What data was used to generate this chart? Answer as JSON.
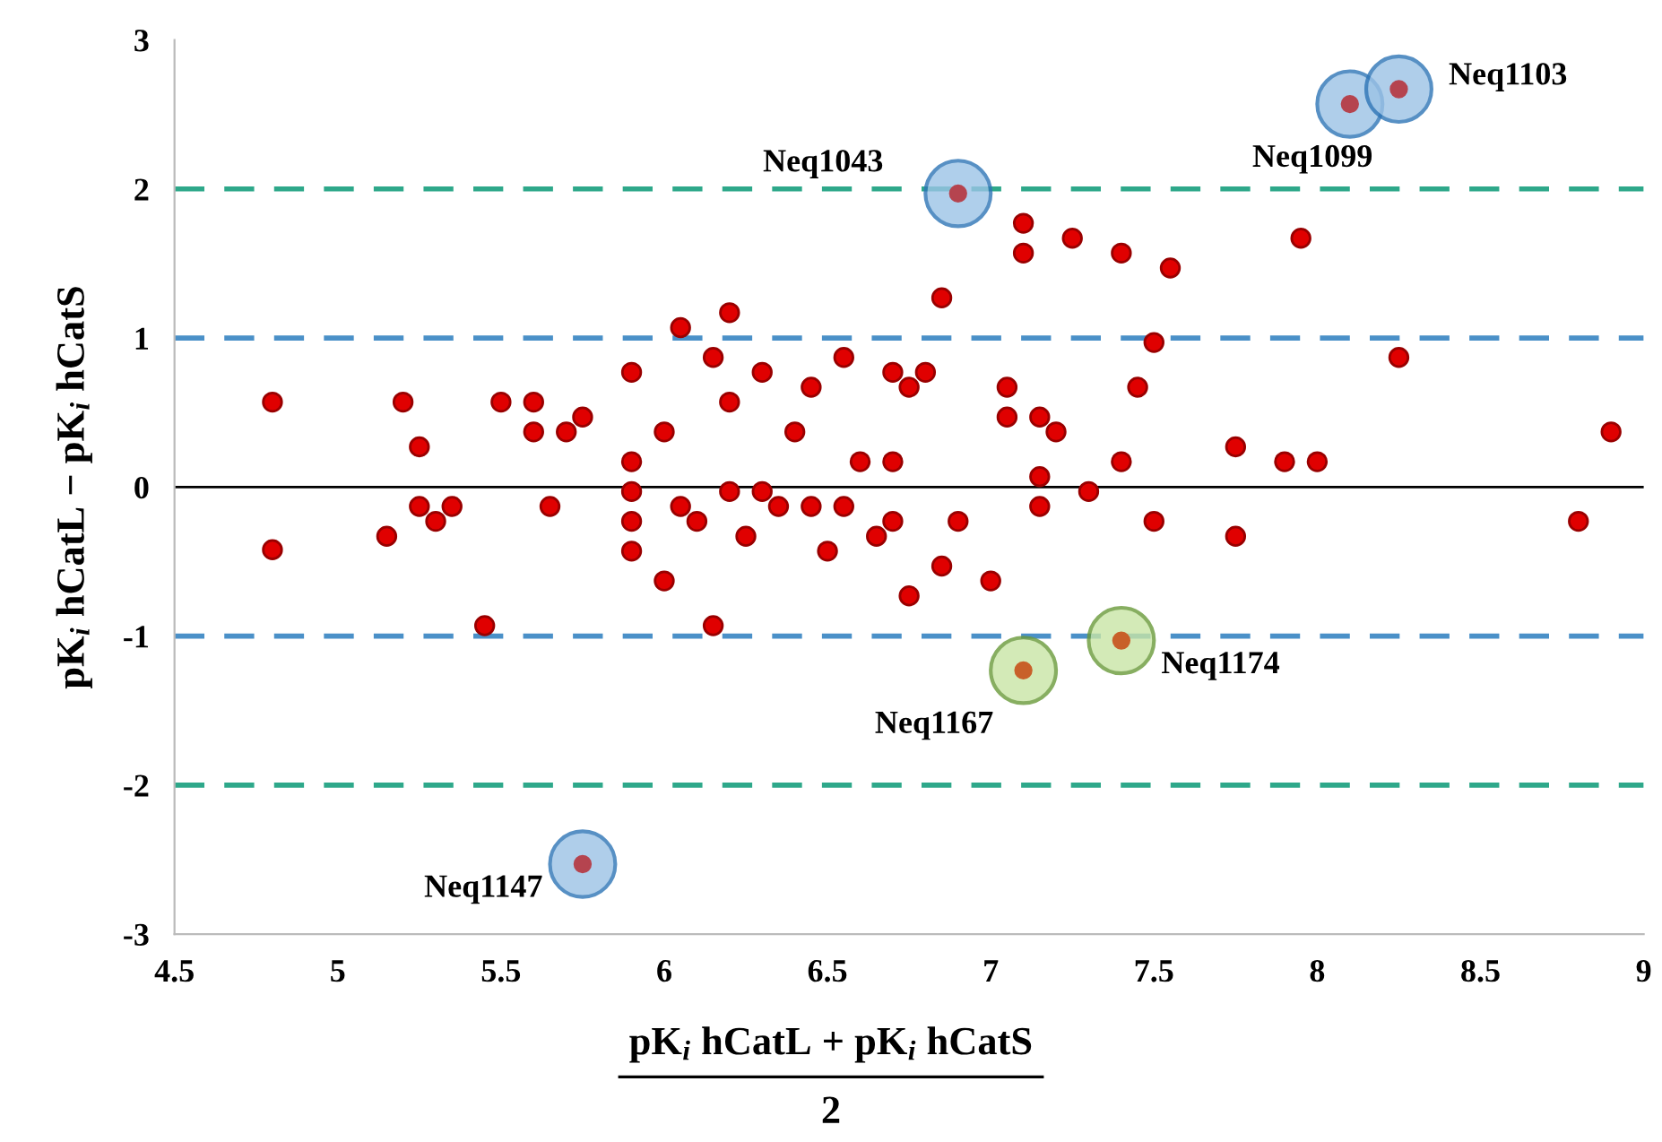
{
  "chart_data": {
    "type": "scatter",
    "xlabel": "pK$_{i}$ hCatL + pK$_{i}$ hCatS\n2",
    "ylabel": "pK$_{i}$ hCatL − pK$_{i}$ hCatS",
    "xlim": [
      4.5,
      9
    ],
    "xticks": [
      4.5,
      5,
      5.5,
      6,
      6.5,
      7,
      7.5,
      8,
      8.5,
      9
    ],
    "ylim": [
      -3,
      3
    ],
    "yticks": [
      -3,
      -2,
      -1,
      0,
      1,
      2,
      3
    ],
    "grid": false,
    "marker": "circle",
    "series": [
      {
        "color": "#e00000",
        "x": [
          4.8,
          4.8,
          5.15,
          5.2,
          5.25,
          5.25,
          5.3,
          5.35,
          5.45,
          5.5,
          5.6,
          5.6,
          5.65,
          5.7,
          5.75,
          5.9,
          5.9,
          5.9,
          5.9,
          5.9,
          6.0,
          6.0,
          6.05,
          6.05,
          6.1,
          6.15,
          6.15,
          6.2,
          6.2,
          6.2,
          6.25,
          6.3,
          6.3,
          6.35,
          6.4,
          6.45,
          6.45,
          6.5,
          6.55,
          6.55,
          6.6,
          6.65,
          6.7,
          6.7,
          6.7,
          6.75,
          6.75,
          6.8,
          6.85,
          6.85,
          6.9,
          7.0,
          7.05,
          7.05,
          7.1,
          7.1,
          7.15,
          7.15,
          7.15,
          7.2,
          7.25,
          7.3,
          7.4,
          7.4,
          7.45,
          7.5,
          7.5,
          7.55,
          7.75,
          7.75,
          7.9,
          7.95,
          8.0,
          8.25,
          8.8,
          8.9
        ],
        "values": [
          0.57,
          -0.42,
          -0.33,
          0.57,
          0.27,
          -0.13,
          -0.23,
          -0.13,
          -0.93,
          0.57,
          0.57,
          0.37,
          -0.13,
          0.37,
          0.47,
          0.77,
          0.17,
          -0.03,
          -0.23,
          -0.43,
          0.37,
          -0.63,
          1.07,
          -0.13,
          -0.23,
          0.87,
          -0.93,
          1.17,
          0.57,
          -0.03,
          -0.33,
          0.77,
          -0.03,
          -0.13,
          0.37,
          0.67,
          -0.13,
          -0.43,
          0.87,
          -0.13,
          0.17,
          -0.33,
          0.77,
          0.17,
          -0.23,
          0.67,
          -0.73,
          0.77,
          1.27,
          -0.53,
          -0.23,
          -0.63,
          0.67,
          0.47,
          1.77,
          1.57,
          0.47,
          0.07,
          -0.13,
          0.37,
          1.67,
          -0.03,
          1.57,
          0.17,
          0.67,
          0.97,
          -0.23,
          1.47,
          0.27,
          -0.33,
          0.17,
          1.67,
          0.17,
          0.87,
          -0.23,
          0.37
        ]
      },
      {
        "color": "#b5444f",
        "x": [
          6.9,
          8.1,
          8.25,
          5.75
        ],
        "values": [
          1.97,
          2.57,
          2.67,
          -2.53
        ]
      },
      {
        "color": "#c8602a",
        "x": [
          7.1,
          7.4
        ],
        "values": [
          -1.23,
          -1.03
        ]
      }
    ],
    "ref_lines": [
      {
        "axis": "y",
        "value": 2,
        "color": "#2ea88a",
        "line_style": "dashed"
      },
      {
        "axis": "y",
        "value": 1,
        "color": "#4a90c8",
        "line_style": "dashed"
      },
      {
        "axis": "y",
        "value": 0,
        "color": "#000000",
        "line_style": "solid"
      },
      {
        "axis": "y",
        "value": -1,
        "color": "#4a90c8",
        "line_style": "dashed"
      },
      {
        "axis": "y",
        "value": -2,
        "color": "#2ea88a",
        "line_style": "dashed"
      }
    ],
    "annotations": [
      {
        "text": "Neq1043",
        "x": 6.9,
        "y": 1.97
      },
      {
        "text": "Neq1099",
        "x": 8.1,
        "y": 2.57
      },
      {
        "text": "Neq1103",
        "x": 8.25,
        "y": 2.67
      },
      {
        "text": "Neq1147",
        "x": 5.75,
        "y": -2.53
      },
      {
        "text": "Neq1167",
        "x": 7.1,
        "y": -1.23
      },
      {
        "text": "Neq1174",
        "x": 7.4,
        "y": -1.03
      }
    ]
  }
}
